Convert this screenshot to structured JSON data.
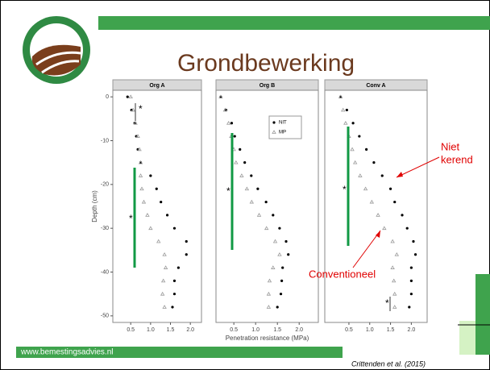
{
  "title": "Grondbewerking",
  "footer_url": "www.bemestingsadvies.nl",
  "citation": "Crittenden et al. (2015)",
  "annotations": {
    "niet_kerend": [
      "Niet",
      "kerend"
    ],
    "conventioneel": "Conventioneel",
    "significance": "*"
  },
  "chart_data": [
    {
      "type": "scatter",
      "title": "Org A",
      "ylabel": "Depth (cm)",
      "y": [
        0,
        -3,
        -6,
        -9,
        -12,
        -15,
        -18,
        -21,
        -24,
        -27,
        -30,
        -33,
        -36,
        -39,
        -42,
        -45,
        -48
      ],
      "series": [
        {
          "name": "NIT",
          "color": "#000000",
          "x": [
            0.42,
            0.52,
            0.6,
            0.64,
            0.68,
            0.75,
            1.0,
            1.15,
            1.26,
            1.42,
            1.6,
            1.9,
            1.9,
            1.7,
            1.6,
            1.6,
            1.55
          ]
        },
        {
          "name": "MP",
          "color": "#999999",
          "x": [
            0.5,
            0.56,
            0.62,
            0.68,
            0.72,
            0.75,
            0.75,
            0.78,
            0.83,
            0.92,
            1.0,
            1.2,
            1.35,
            1.38,
            1.32,
            1.3,
            1.35
          ]
        }
      ],
      "xlim": [
        0.05,
        2.28
      ],
      "ylim": [
        -51.5,
        1.5
      ],
      "xticks": [
        0.5,
        {
          "value": 1,
          "label": "1.0"
        },
        1.5,
        {
          "value": 2,
          "label": "2.0"
        }
      ],
      "yticks": [
        0,
        -10,
        -20,
        -30,
        -40,
        -50
      ]
    },
    {
      "type": "scatter",
      "title": "Org B",
      "xlabel": "Penetration resistance (MPa)",
      "legend": "upper right",
      "y": [
        0,
        -3,
        -6,
        -9,
        -12,
        -15,
        -18,
        -21,
        -24,
        -27,
        -30,
        -33,
        -36,
        -39,
        -42,
        -45,
        -48
      ],
      "series": [
        {
          "name": "NIT",
          "color": "#000000",
          "x": [
            0.2,
            0.32,
            0.45,
            0.52,
            0.64,
            0.75,
            0.9,
            1.05,
            1.24,
            1.4,
            1.55,
            1.7,
            1.75,
            1.62,
            1.6,
            1.58,
            1.5
          ]
        },
        {
          "name": "MP",
          "color": "#999999",
          "x": [
            0.2,
            0.3,
            0.38,
            0.44,
            0.5,
            0.55,
            0.68,
            0.8,
            0.91,
            1.08,
            1.25,
            1.45,
            1.55,
            1.4,
            1.32,
            1.3,
            1.3
          ]
        }
      ],
      "xlim": [
        0.09,
        2.44
      ],
      "ylim": [
        -51.5,
        1.5
      ],
      "xticks": [
        0.5,
        {
          "value": 1,
          "label": "1.0"
        },
        1.5,
        {
          "value": 2,
          "label": "2.0"
        }
      ]
    },
    {
      "type": "scatter",
      "title": "Conv A",
      "y": [
        0,
        -3,
        -6,
        -9,
        -12,
        -15,
        -18,
        -21,
        -24,
        -27,
        -30,
        -33,
        -36,
        -39,
        -42,
        -45,
        -48
      ],
      "series": [
        {
          "name": "NIT",
          "color": "#000000",
          "x": [
            0.3,
            0.45,
            0.6,
            0.75,
            0.92,
            1.1,
            1.3,
            1.5,
            1.6,
            1.78,
            1.9,
            2.05,
            2.1,
            2.0,
            2.0,
            2.0,
            1.95
          ]
        },
        {
          "name": "MP",
          "color": "#999999",
          "x": [
            0.3,
            0.36,
            0.42,
            0.5,
            0.58,
            0.65,
            0.77,
            0.9,
            1.05,
            1.2,
            1.35,
            1.55,
            1.65,
            1.55,
            1.58,
            1.6,
            1.6
          ]
        }
      ],
      "xlim": [
        -0.08,
        2.38
      ],
      "ylim": [
        -51.5,
        1.5
      ],
      "xticks": [
        0.5,
        {
          "value": 1,
          "label": "1.0"
        },
        1.5,
        {
          "value": 2,
          "label": "2.0"
        }
      ]
    }
  ]
}
